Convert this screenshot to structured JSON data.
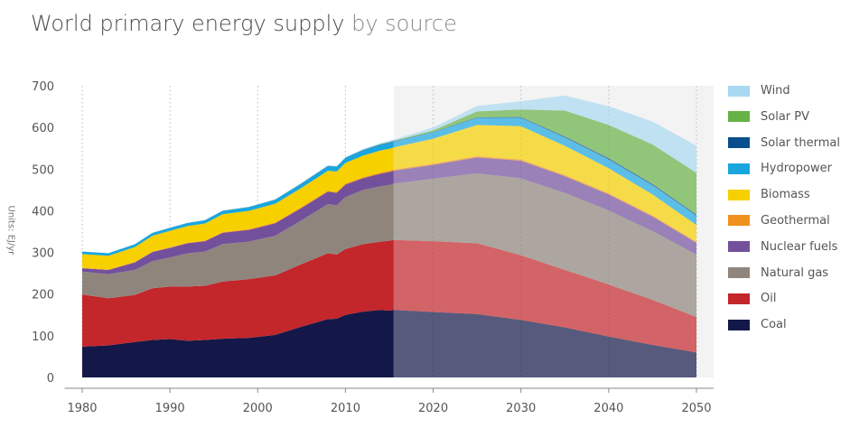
{
  "chart_data": {
    "type": "area",
    "stacked": true,
    "title": "World primary energy supply",
    "subtitle": "by source",
    "ylabel": "Units: EJ/yr",
    "xlim": [
      1978,
      2051
    ],
    "ylim": [
      0,
      700
    ],
    "xticks": [
      1980,
      1990,
      2000,
      2010,
      2020,
      2030,
      2040,
      2050
    ],
    "yticks": [
      0,
      100,
      200,
      300,
      400,
      500,
      600,
      700
    ],
    "grid": "vertical dotted",
    "forecast_start": 2015.5,
    "legend_position": "right",
    "series": [
      {
        "name": "Coal",
        "color": "#141849",
        "points": [
          [
            1980,
            74
          ],
          [
            1983,
            77
          ],
          [
            1986,
            85
          ],
          [
            1988,
            90
          ],
          [
            1990,
            92
          ],
          [
            1992,
            88
          ],
          [
            1994,
            90
          ],
          [
            1996,
            93
          ],
          [
            1999,
            95
          ],
          [
            2002,
            102
          ],
          [
            2005,
            122
          ],
          [
            2008,
            140
          ],
          [
            2009,
            141
          ],
          [
            2010,
            150
          ],
          [
            2012,
            158
          ],
          [
            2014,
            162
          ],
          [
            2015,
            160
          ],
          [
            2015.5,
            162
          ],
          [
            2020,
            157
          ],
          [
            2025,
            152
          ],
          [
            2030,
            138
          ],
          [
            2035,
            120
          ],
          [
            2040,
            98
          ],
          [
            2045,
            78
          ],
          [
            2050,
            60
          ]
        ]
      },
      {
        "name": "Oil",
        "color": "#c3262b",
        "points": [
          [
            1980,
            125
          ],
          [
            1983,
            113
          ],
          [
            1986,
            113
          ],
          [
            1988,
            124
          ],
          [
            1990,
            126
          ],
          [
            1992,
            130
          ],
          [
            1994,
            130
          ],
          [
            1996,
            137
          ],
          [
            1999,
            141
          ],
          [
            2002,
            143
          ],
          [
            2005,
            150
          ],
          [
            2008,
            158
          ],
          [
            2009,
            154
          ],
          [
            2010,
            158
          ],
          [
            2012,
            162
          ],
          [
            2014,
            164
          ],
          [
            2015,
            168
          ],
          [
            2015.5,
            168
          ],
          [
            2020,
            170
          ],
          [
            2025,
            170
          ],
          [
            2030,
            155
          ],
          [
            2035,
            138
          ],
          [
            2040,
            125
          ],
          [
            2045,
            108
          ],
          [
            2050,
            85
          ]
        ]
      },
      {
        "name": "Natural gas",
        "color": "#8f857c",
        "points": [
          [
            1980,
            55
          ],
          [
            1983,
            58
          ],
          [
            1986,
            60
          ],
          [
            1988,
            65
          ],
          [
            1990,
            70
          ],
          [
            1992,
            80
          ],
          [
            1994,
            82
          ],
          [
            1996,
            90
          ],
          [
            1999,
            90
          ],
          [
            2002,
            95
          ],
          [
            2005,
            105
          ],
          [
            2008,
            118
          ],
          [
            2009,
            118
          ],
          [
            2010,
            125
          ],
          [
            2012,
            130
          ],
          [
            2014,
            133
          ],
          [
            2015,
            134
          ],
          [
            2015.5,
            135
          ],
          [
            2020,
            150
          ],
          [
            2025,
            168
          ],
          [
            2030,
            185
          ],
          [
            2035,
            185
          ],
          [
            2040,
            178
          ],
          [
            2045,
            165
          ],
          [
            2050,
            150
          ]
        ]
      },
      {
        "name": "Nuclear fuels",
        "color": "#73509c",
        "points": [
          [
            1980,
            8
          ],
          [
            1983,
            10
          ],
          [
            1986,
            18
          ],
          [
            1988,
            22
          ],
          [
            1990,
            23
          ],
          [
            1992,
            24
          ],
          [
            1994,
            25
          ],
          [
            1996,
            27
          ],
          [
            1999,
            28
          ],
          [
            2002,
            30
          ],
          [
            2005,
            30
          ],
          [
            2008,
            30
          ],
          [
            2009,
            30
          ],
          [
            2010,
            30
          ],
          [
            2012,
            28
          ],
          [
            2014,
            30
          ],
          [
            2015,
            31
          ],
          [
            2015.5,
            31
          ],
          [
            2020,
            33
          ],
          [
            2025,
            38
          ],
          [
            2030,
            42
          ],
          [
            2035,
            40
          ],
          [
            2040,
            38
          ],
          [
            2045,
            35
          ],
          [
            2050,
            28
          ]
        ]
      },
      {
        "name": "Geothermal",
        "color": "#f0901e",
        "points": [
          [
            1980,
            1
          ],
          [
            1990,
            1
          ],
          [
            2000,
            2
          ],
          [
            2010,
            2
          ],
          [
            2015.5,
            3
          ],
          [
            2020,
            3
          ],
          [
            2030,
            3
          ],
          [
            2040,
            3
          ],
          [
            2050,
            3
          ]
        ]
      },
      {
        "name": "Biomass",
        "color": "#f7d000",
        "points": [
          [
            1980,
            33
          ],
          [
            1983,
            33
          ],
          [
            1986,
            36
          ],
          [
            1988,
            38
          ],
          [
            1990,
            40
          ],
          [
            1992,
            40
          ],
          [
            1994,
            41
          ],
          [
            1996,
            43
          ],
          [
            1999,
            44
          ],
          [
            2002,
            45
          ],
          [
            2005,
            46
          ],
          [
            2008,
            48
          ],
          [
            2009,
            49
          ],
          [
            2010,
            50
          ],
          [
            2012,
            52
          ],
          [
            2014,
            53
          ],
          [
            2015,
            53
          ],
          [
            2015.5,
            53
          ],
          [
            2020,
            60
          ],
          [
            2025,
            75
          ],
          [
            2030,
            80
          ],
          [
            2035,
            70
          ],
          [
            2040,
            60
          ],
          [
            2045,
            50
          ],
          [
            2050,
            40
          ]
        ]
      },
      {
        "name": "Hydropower",
        "color": "#19a6df",
        "points": [
          [
            1980,
            6
          ],
          [
            1990,
            7
          ],
          [
            2000,
            9
          ],
          [
            2010,
            12
          ],
          [
            2015.5,
            14
          ],
          [
            2020,
            15
          ],
          [
            2025,
            17
          ],
          [
            2030,
            20
          ],
          [
            2035,
            20
          ],
          [
            2040,
            21
          ],
          [
            2045,
            22
          ],
          [
            2050,
            22
          ]
        ]
      },
      {
        "name": "Solar thermal",
        "color": "#0a4f8c",
        "points": [
          [
            1980,
            0
          ],
          [
            2010,
            0.5
          ],
          [
            2015.5,
            1
          ],
          [
            2020,
            1
          ],
          [
            2030,
            2
          ],
          [
            2040,
            3
          ],
          [
            2050,
            3
          ]
        ]
      },
      {
        "name": "Solar PV",
        "color": "#66b246",
        "points": [
          [
            1980,
            0
          ],
          [
            2010,
            0.2
          ],
          [
            2015.5,
            1
          ],
          [
            2020,
            4
          ],
          [
            2025,
            14
          ],
          [
            2030,
            18
          ],
          [
            2035,
            62
          ],
          [
            2040,
            80
          ],
          [
            2045,
            95
          ],
          [
            2050,
            100
          ]
        ]
      },
      {
        "name": "Wind",
        "color": "#a9d8f1",
        "points": [
          [
            1980,
            0
          ],
          [
            2010,
            1
          ],
          [
            2015.5,
            3
          ],
          [
            2020,
            7
          ],
          [
            2025,
            13
          ],
          [
            2030,
            20
          ],
          [
            2035,
            36
          ],
          [
            2040,
            45
          ],
          [
            2045,
            55
          ],
          [
            2050,
            65
          ]
        ]
      }
    ]
  }
}
